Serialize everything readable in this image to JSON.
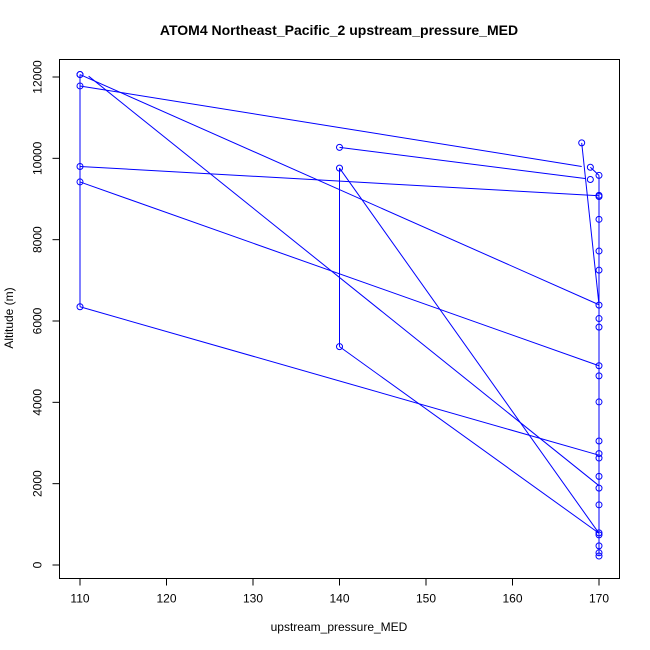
{
  "chart_data": {
    "type": "line",
    "title": "ATOM4 Northeast_Pacific_2 upstream_pressure_MED",
    "xlabel": "upstream_pressure_MED",
    "ylabel": "Altitude (m)",
    "xlim": [
      107,
      172
    ],
    "ylim": [
      -300,
      12500
    ],
    "xticks": [
      110,
      120,
      130,
      140,
      150,
      160,
      170
    ],
    "yticks": [
      0,
      2000,
      4000,
      6000,
      8000,
      10000,
      12000
    ],
    "grid": false,
    "legend": "none",
    "colors": {
      "series": "#0000ff",
      "axes": "#000000",
      "background": "#ffffff"
    },
    "series": [
      {
        "marker": "open-circle",
        "points": [
          {
            "x": 110,
            "y": 12060
          },
          {
            "x": 110,
            "y": 12060
          },
          {
            "x": 110,
            "y": 11780
          },
          {
            "x": 110,
            "y": 9800
          },
          {
            "x": 110,
            "y": 9420
          },
          {
            "x": 110,
            "y": 6350
          },
          {
            "x": 140,
            "y": 10270
          },
          {
            "x": 140,
            "y": 9760
          },
          {
            "x": 140,
            "y": 5370
          },
          {
            "x": 168,
            "y": 10380
          },
          {
            "x": 169,
            "y": 9780
          },
          {
            "x": 169,
            "y": 9480
          },
          {
            "x": 170,
            "y": 9580
          },
          {
            "x": 170,
            "y": 9090
          },
          {
            "x": 170,
            "y": 9060
          },
          {
            "x": 170,
            "y": 8500
          },
          {
            "x": 170,
            "y": 7720
          },
          {
            "x": 170,
            "y": 7250
          },
          {
            "x": 170,
            "y": 6390
          },
          {
            "x": 170,
            "y": 6060
          },
          {
            "x": 170,
            "y": 5850
          },
          {
            "x": 170,
            "y": 4900
          },
          {
            "x": 170,
            "y": 4650
          },
          {
            "x": 170,
            "y": 4010
          },
          {
            "x": 170,
            "y": 3050
          },
          {
            "x": 170,
            "y": 2740
          },
          {
            "x": 170,
            "y": 2630
          },
          {
            "x": 170,
            "y": 2180
          },
          {
            "x": 170,
            "y": 1890
          },
          {
            "x": 170,
            "y": 1480
          },
          {
            "x": 170,
            "y": 790
          },
          {
            "x": 170,
            "y": 740
          },
          {
            "x": 170,
            "y": 470
          },
          {
            "x": 170,
            "y": 300
          },
          {
            "x": 170,
            "y": 220
          }
        ],
        "segments": [
          [
            [
              110,
              12060
            ],
            [
              170,
              6400
            ]
          ],
          [
            [
              111,
              12020
            ],
            [
              170,
              1950
            ]
          ],
          [
            [
              110,
              11780
            ],
            [
              168,
              9800
            ]
          ],
          [
            [
              110,
              9800
            ],
            [
              170,
              9080
            ]
          ],
          [
            [
              110,
              9420
            ],
            [
              170,
              4900
            ]
          ],
          [
            [
              110,
              6350
            ],
            [
              170,
              2700
            ]
          ],
          [
            [
              140,
              10270
            ],
            [
              168.5,
              9500
            ]
          ],
          [
            [
              140,
              9760
            ],
            [
              170,
              780
            ]
          ],
          [
            [
              140,
              5370
            ],
            [
              170,
              780
            ]
          ],
          [
            [
              110,
              12060
            ],
            [
              110,
              6350
            ]
          ],
          [
            [
              140,
              9760
            ],
            [
              140,
              5370
            ]
          ],
          [
            [
              168,
              10380
            ],
            [
              170,
              6400
            ]
          ],
          [
            [
              169,
              9780
            ],
            [
              170,
              9580
            ]
          ],
          [
            [
              170,
              9580
            ],
            [
              170,
              220
            ]
          ]
        ]
      }
    ]
  }
}
